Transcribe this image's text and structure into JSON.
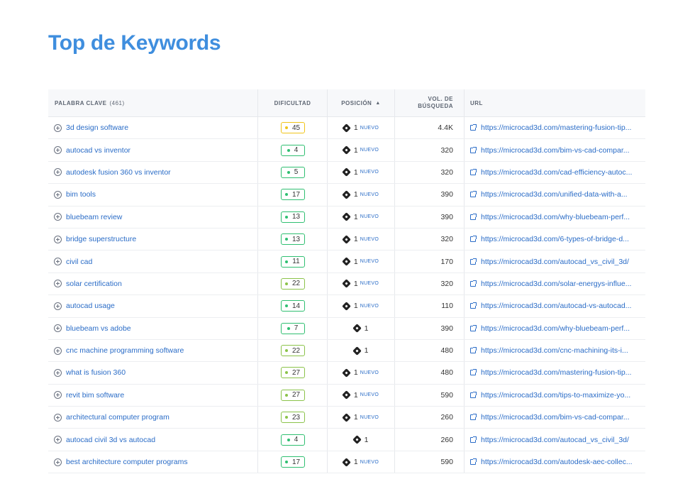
{
  "title": "Top de Keywords",
  "columns": {
    "keyword": "PALABRA CLAVE",
    "keyword_count": "(461)",
    "difficulty": "DIFICULTAD",
    "position": "POSICIÓN",
    "volume": "VOL. DE BÚSQUEDA",
    "volume_line1": "VOL. DE",
    "volume_line2": "BÚSQUEDA",
    "url": "URL"
  },
  "colors": {
    "title": "#3f8ede",
    "link": "#2a6cc7",
    "diff_yellow": "#f0c419",
    "diff_green": "#2fbf71",
    "diff_lime": "#8bc34a"
  },
  "rows": [
    {
      "keyword": "3d design software",
      "difficulty": "45",
      "diff_color": "yellow",
      "position": "1",
      "new": "NUEVO",
      "volume": "4.4K",
      "url": "https://microcad3d.com/mastering-fusion-tip..."
    },
    {
      "keyword": "autocad vs inventor",
      "difficulty": "4",
      "diff_color": "green",
      "position": "1",
      "new": "NUEVO",
      "volume": "320",
      "url": "https://microcad3d.com/bim-vs-cad-compar..."
    },
    {
      "keyword": "autodesk fusion 360 vs inventor",
      "difficulty": "5",
      "diff_color": "green",
      "position": "1",
      "new": "NUEVO",
      "volume": "320",
      "url": "https://microcad3d.com/cad-efficiency-autoc..."
    },
    {
      "keyword": "bim tools",
      "difficulty": "17",
      "diff_color": "green",
      "position": "1",
      "new": "NUEVO",
      "volume": "390",
      "url": "https://microcad3d.com/unified-data-with-a..."
    },
    {
      "keyword": "bluebeam review",
      "difficulty": "13",
      "diff_color": "green",
      "position": "1",
      "new": "NUEVO",
      "volume": "390",
      "url": "https://microcad3d.com/why-bluebeam-perf..."
    },
    {
      "keyword": "bridge superstructure",
      "difficulty": "13",
      "diff_color": "green",
      "position": "1",
      "new": "NUEVO",
      "volume": "320",
      "url": "https://microcad3d.com/6-types-of-bridge-d..."
    },
    {
      "keyword": "civil cad",
      "difficulty": "11",
      "diff_color": "green",
      "position": "1",
      "new": "NUEVO",
      "volume": "170",
      "url": "https://microcad3d.com/autocad_vs_civil_3d/"
    },
    {
      "keyword": "solar certification",
      "difficulty": "22",
      "diff_color": "lime",
      "position": "1",
      "new": "NUEVO",
      "volume": "320",
      "url": "https://microcad3d.com/solar-energys-influe..."
    },
    {
      "keyword": "autocad usage",
      "difficulty": "14",
      "diff_color": "green",
      "position": "1",
      "new": "NUEVO",
      "volume": "110",
      "url": "https://microcad3d.com/autocad-vs-autocad..."
    },
    {
      "keyword": "bluebeam vs adobe",
      "difficulty": "7",
      "diff_color": "green",
      "position": "1",
      "new": "",
      "volume": "390",
      "url": "https://microcad3d.com/why-bluebeam-perf..."
    },
    {
      "keyword": "cnc machine programming software",
      "difficulty": "22",
      "diff_color": "lime",
      "position": "1",
      "new": "",
      "volume": "480",
      "url": "https://microcad3d.com/cnc-machining-its-i..."
    },
    {
      "keyword": "what is fusion 360",
      "difficulty": "27",
      "diff_color": "lime",
      "position": "1",
      "new": "NUEVO",
      "volume": "480",
      "url": "https://microcad3d.com/mastering-fusion-tip..."
    },
    {
      "keyword": "revit bim software",
      "difficulty": "27",
      "diff_color": "lime",
      "position": "1",
      "new": "NUEVO",
      "volume": "590",
      "url": "https://microcad3d.com/tips-to-maximize-yo..."
    },
    {
      "keyword": "architectural computer program",
      "difficulty": "23",
      "diff_color": "lime",
      "position": "1",
      "new": "NUEVO",
      "volume": "260",
      "url": "https://microcad3d.com/bim-vs-cad-compar..."
    },
    {
      "keyword": "autocad civil 3d vs autocad",
      "difficulty": "4",
      "diff_color": "green",
      "position": "1",
      "new": "",
      "volume": "260",
      "url": "https://microcad3d.com/autocad_vs_civil_3d/"
    },
    {
      "keyword": "best architecture computer programs",
      "difficulty": "17",
      "diff_color": "green",
      "position": "1",
      "new": "NUEVO",
      "volume": "590",
      "url": "https://microcad3d.com/autodesk-aec-collec..."
    }
  ]
}
